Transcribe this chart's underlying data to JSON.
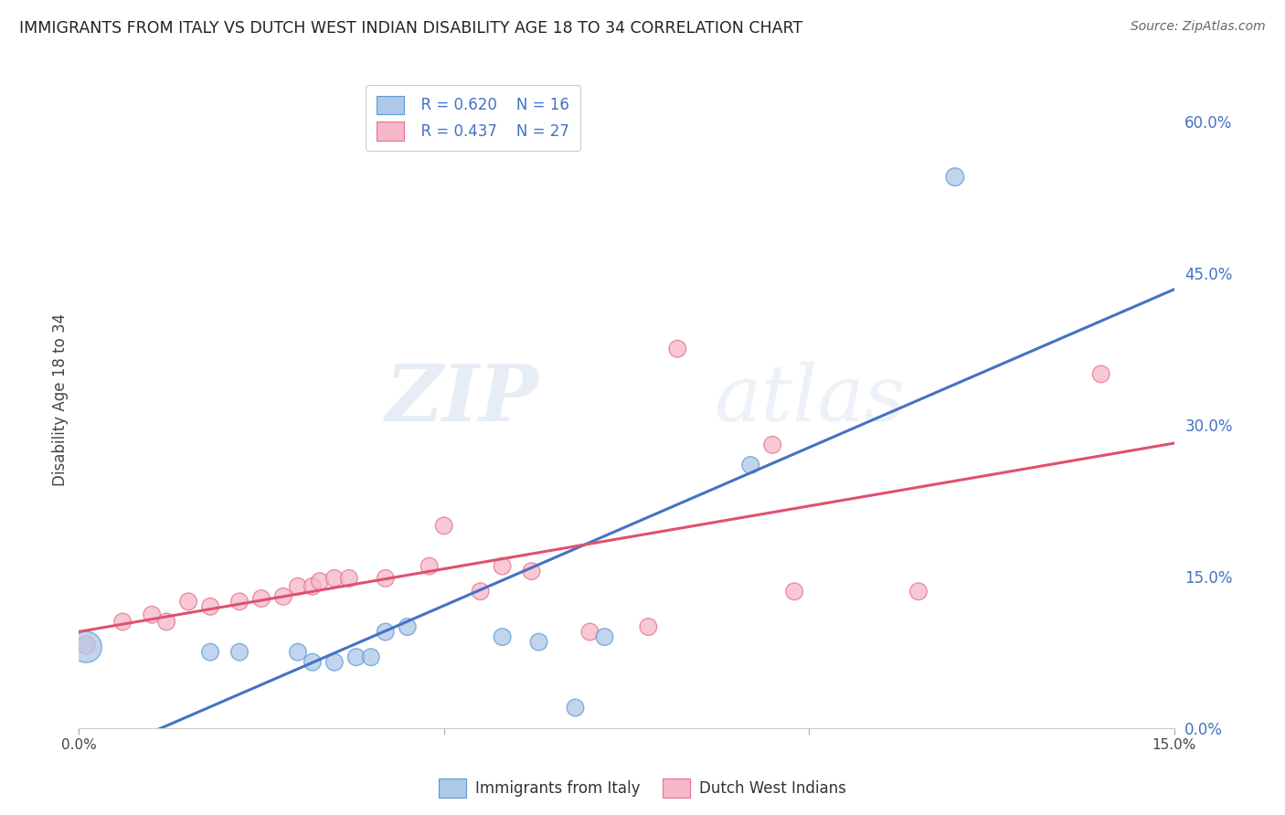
{
  "title": "IMMIGRANTS FROM ITALY VS DUTCH WEST INDIAN DISABILITY AGE 18 TO 34 CORRELATION CHART",
  "source": "Source: ZipAtlas.com",
  "ylabel": "Disability Age 18 to 34",
  "xlim": [
    0.0,
    0.15
  ],
  "ylim": [
    0.0,
    0.65
  ],
  "xticks": [
    0.0,
    0.05,
    0.1,
    0.15
  ],
  "xtick_labels": [
    "0.0%",
    "",
    "",
    "15.0%"
  ],
  "yticks_right": [
    0.0,
    0.15,
    0.3,
    0.45,
    0.6
  ],
  "ytick_labels_right": [
    "0.0%",
    "15.0%",
    "30.0%",
    "45.0%",
    "60.0%"
  ],
  "legend_r1": "R = 0.620",
  "legend_n1": "N = 16",
  "legend_r2": "R = 0.437",
  "legend_n2": "N = 27",
  "blue_fill": "#aec8e8",
  "pink_fill": "#f5b8c8",
  "blue_edge": "#5b9bd5",
  "pink_edge": "#e87090",
  "blue_line": "#4472c4",
  "pink_line": "#e05070",
  "watermark_zip": "ZIP",
  "watermark_atlas": "atlas",
  "italy_x": [
    0.001,
    0.018,
    0.022,
    0.03,
    0.032,
    0.035,
    0.038,
    0.04,
    0.042,
    0.045,
    0.058,
    0.063,
    0.068,
    0.072,
    0.092,
    0.12
  ],
  "italy_y": [
    0.08,
    0.075,
    0.075,
    0.075,
    0.065,
    0.065,
    0.07,
    0.07,
    0.095,
    0.1,
    0.09,
    0.085,
    0.02,
    0.09,
    0.26,
    0.545
  ],
  "italy_s": [
    600,
    180,
    180,
    180,
    180,
    180,
    180,
    180,
    180,
    180,
    180,
    180,
    180,
    180,
    180,
    200
  ],
  "dutch_x": [
    0.001,
    0.006,
    0.01,
    0.012,
    0.015,
    0.018,
    0.022,
    0.025,
    0.028,
    0.03,
    0.032,
    0.033,
    0.035,
    0.037,
    0.042,
    0.048,
    0.05,
    0.055,
    0.058,
    0.062,
    0.07,
    0.078,
    0.082,
    0.095,
    0.098,
    0.115,
    0.14
  ],
  "dutch_y": [
    0.082,
    0.105,
    0.112,
    0.105,
    0.125,
    0.12,
    0.125,
    0.128,
    0.13,
    0.14,
    0.14,
    0.145,
    0.148,
    0.148,
    0.148,
    0.16,
    0.2,
    0.135,
    0.16,
    0.155,
    0.095,
    0.1,
    0.375,
    0.28,
    0.135,
    0.135,
    0.35
  ],
  "dutch_s": [
    200,
    180,
    180,
    180,
    180,
    180,
    180,
    180,
    180,
    180,
    180,
    180,
    180,
    180,
    180,
    180,
    180,
    180,
    180,
    180,
    180,
    180,
    180,
    180,
    180,
    180,
    180
  ]
}
